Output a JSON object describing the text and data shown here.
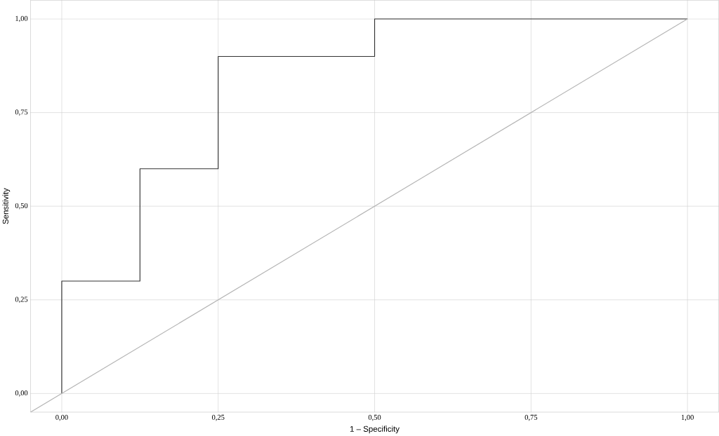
{
  "chart_data": {
    "type": "line",
    "xlabel": "1 – Specificity",
    "ylabel": "Sensitivity",
    "xlim": [
      -0.05,
      1.05
    ],
    "ylim": [
      -0.05,
      1.05
    ],
    "xticks": [
      {
        "value": 0,
        "label": "0,00"
      },
      {
        "value": 0.25,
        "label": "0,25"
      },
      {
        "value": 0.5,
        "label": "0,50"
      },
      {
        "value": 0.75,
        "label": "0,75"
      },
      {
        "value": 1,
        "label": "1,00"
      }
    ],
    "yticks": [
      {
        "value": 0,
        "label": "0,00"
      },
      {
        "value": 0.25,
        "label": "0,25"
      },
      {
        "value": 0.5,
        "label": "0,50"
      },
      {
        "value": 0.75,
        "label": "0,75"
      },
      {
        "value": 1,
        "label": "1,00"
      }
    ],
    "grid": true,
    "series": [
      {
        "color": "#333333",
        "x": [
          0,
          0,
          0.125,
          0.125,
          0.25,
          0.25,
          0.5,
          0.5,
          1
        ],
        "values": [
          0,
          0.3,
          0.3,
          0.6,
          0.6,
          0.9,
          0.9,
          1,
          1
        ]
      },
      {
        "color": "#b4b4b4",
        "x": [
          -0.05,
          1
        ],
        "values": [
          -0.05,
          1
        ]
      }
    ]
  }
}
